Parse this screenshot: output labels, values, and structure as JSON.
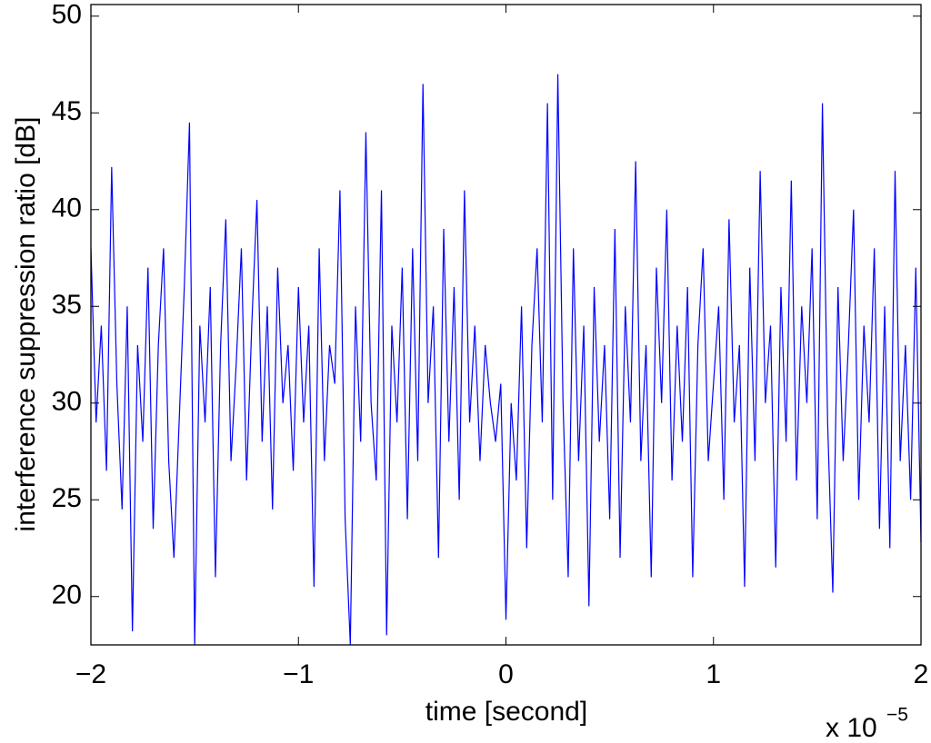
{
  "chart_data": {
    "type": "line",
    "xlabel": "time [second]",
    "ylabel": "interference suppression ratio [dB]",
    "axis_multiplier": {
      "text": "x 10",
      "exponent": "−5"
    },
    "x": [
      -2,
      -1.975,
      -1.95,
      -1.925,
      -1.9,
      -1.875,
      -1.85,
      -1.825,
      -1.8,
      -1.775,
      -1.75,
      -1.725,
      -1.7,
      -1.675,
      -1.65,
      -1.625,
      -1.6,
      -1.575,
      -1.55,
      -1.525,
      -1.5,
      -1.475,
      -1.45,
      -1.425,
      -1.4,
      -1.375,
      -1.35,
      -1.325,
      -1.3,
      -1.275,
      -1.25,
      -1.225,
      -1.2,
      -1.175,
      -1.15,
      -1.125,
      -1.1,
      -1.075,
      -1.05,
      -1.025,
      -1,
      -0.975,
      -0.95,
      -0.925,
      -0.9,
      -0.875,
      -0.85,
      -0.825,
      -0.8,
      -0.775,
      -0.75,
      -0.725,
      -0.7,
      -0.675,
      -0.65,
      -0.625,
      -0.6,
      -0.575,
      -0.55,
      -0.525,
      -0.5,
      -0.475,
      -0.45,
      -0.425,
      -0.4,
      -0.375,
      -0.35,
      -0.325,
      -0.3,
      -0.275,
      -0.25,
      -0.225,
      -0.2,
      -0.175,
      -0.15,
      -0.125,
      -0.1,
      -0.075,
      -0.05,
      -0.025,
      0,
      0.025,
      0.05,
      0.075,
      0.1,
      0.125,
      0.15,
      0.175,
      0.2,
      0.225,
      0.25,
      0.275,
      0.3,
      0.325,
      0.35,
      0.375,
      0.4,
      0.425,
      0.45,
      0.475,
      0.5,
      0.525,
      0.55,
      0.575,
      0.6,
      0.625,
      0.65,
      0.675,
      0.7,
      0.725,
      0.75,
      0.775,
      0.8,
      0.825,
      0.85,
      0.875,
      0.9,
      0.925,
      0.95,
      0.975,
      1,
      1.025,
      1.05,
      1.075,
      1.1,
      1.125,
      1.15,
      1.175,
      1.2,
      1.225,
      1.25,
      1.275,
      1.3,
      1.325,
      1.35,
      1.375,
      1.4,
      1.425,
      1.45,
      1.475,
      1.5,
      1.525,
      1.55,
      1.575,
      1.6,
      1.625,
      1.65,
      1.675,
      1.7,
      1.725,
      1.75,
      1.775,
      1.8,
      1.825,
      1.85,
      1.875,
      1.9,
      1.925,
      1.95,
      1.975,
      2
    ],
    "series": [
      {
        "color": "#0000ff",
        "values": [
          38,
          29,
          34,
          26.5,
          42.2,
          31,
          24.5,
          35,
          18.2,
          33,
          28,
          37,
          23.5,
          33,
          38,
          27,
          22,
          29,
          36,
          44.5,
          17.5,
          34,
          29,
          36,
          21,
          33,
          39.5,
          27,
          32,
          38,
          26,
          34,
          40.5,
          28,
          35,
          24.5,
          37,
          30,
          33,
          26.5,
          36,
          29,
          34,
          20.5,
          38,
          27,
          33,
          31,
          41,
          24,
          17.5,
          35,
          28,
          44,
          30,
          26,
          41,
          18,
          34,
          29,
          37,
          24,
          38,
          27,
          46.5,
          30,
          35,
          22,
          39,
          28,
          36,
          25,
          41,
          29,
          34,
          27,
          33,
          30,
          28,
          31,
          18.8,
          30,
          26,
          35,
          22.5,
          33,
          38,
          29,
          45.5,
          25,
          47,
          30,
          21,
          38,
          27,
          34,
          19.5,
          36,
          28,
          33,
          24,
          39,
          22,
          35,
          29,
          42.5,
          27,
          33,
          21,
          37,
          30,
          40,
          26,
          34,
          28,
          36,
          21,
          33,
          38,
          27,
          31,
          35,
          25,
          39.5,
          29,
          33,
          20.5,
          37,
          27,
          42,
          30,
          34,
          21.5,
          36,
          28,
          41.5,
          26,
          35,
          30,
          38,
          24,
          45.5,
          29,
          20.2,
          36,
          27,
          33,
          40,
          25,
          34,
          29,
          38,
          23.5,
          35,
          22.5,
          42,
          27,
          33,
          25,
          37,
          22.8
        ]
      }
    ],
    "xlim": [
      -2,
      2
    ],
    "xticks": [
      {
        "value": -2,
        "label": "−2"
      },
      {
        "value": -1,
        "label": "−1"
      },
      0,
      1,
      2
    ],
    "ylim": [
      17.5,
      50.6
    ],
    "yticks": [
      20,
      25,
      30,
      35,
      40,
      45,
      50
    ],
    "grid": false
  }
}
